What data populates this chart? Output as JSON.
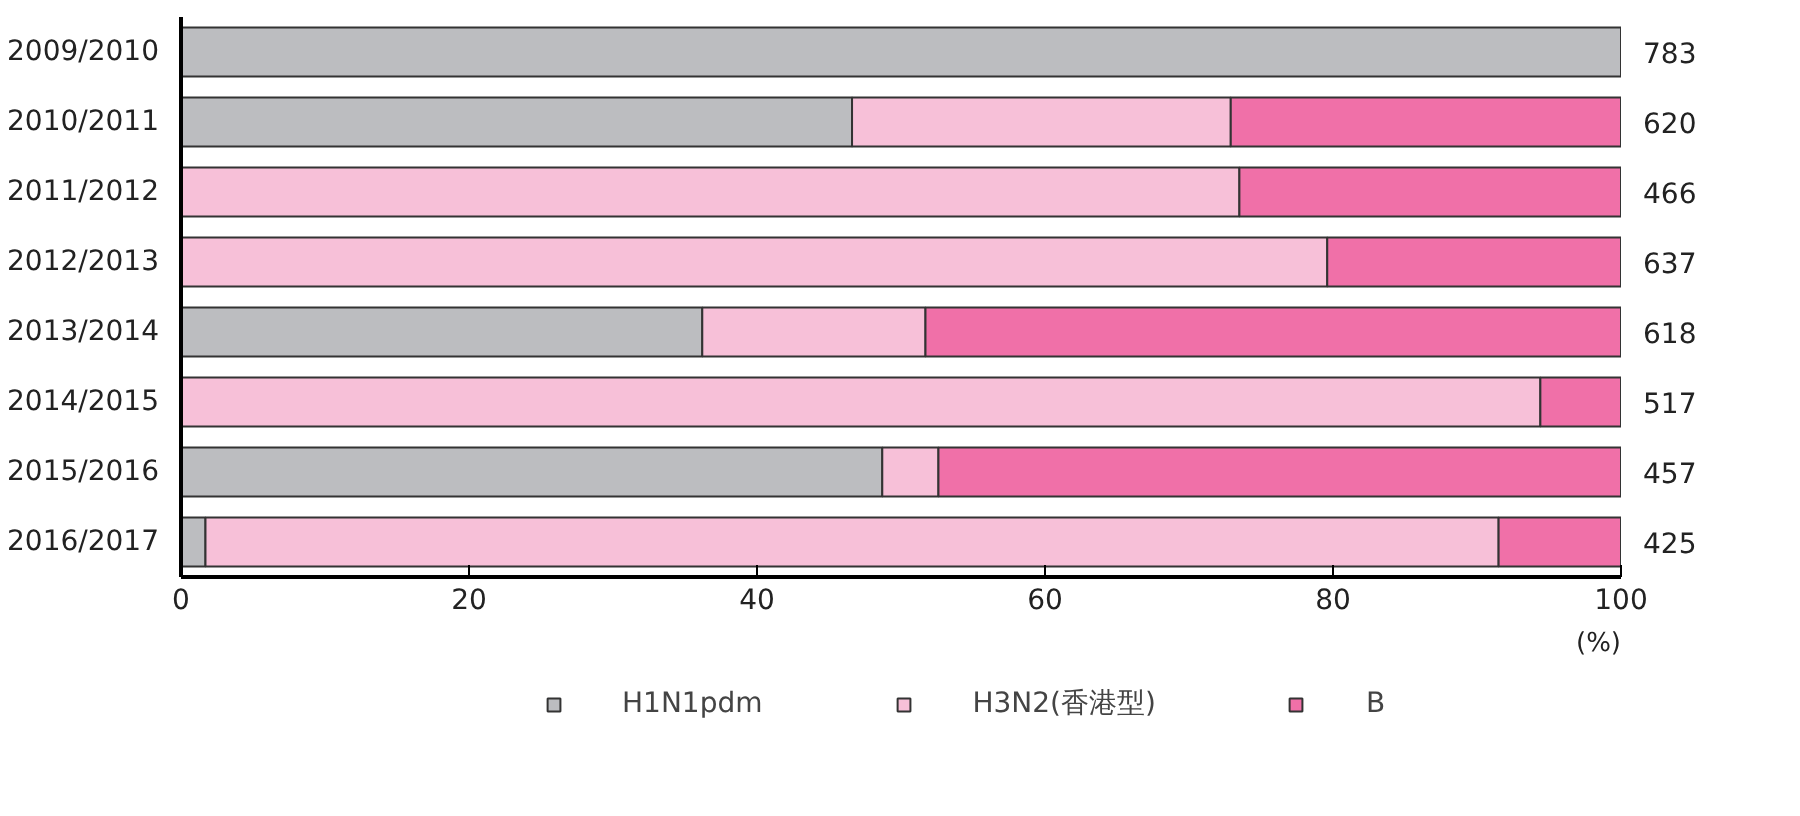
{
  "chart_data": {
    "type": "bar",
    "orientation": "horizontal",
    "stacked": true,
    "xlabel": "(%)",
    "categories": [
      "2009/2010",
      "2010/2011",
      "2011/2012",
      "2012/2013",
      "2013/2014",
      "2014/2015",
      "2015/2016",
      "2016/2017"
    ],
    "series": [
      {
        "name": "H1N1pdm",
        "color": "#bcbdc0",
        "values": [
          100,
          46.6,
          null,
          null,
          36.2,
          null,
          48.7,
          1.7
        ]
      },
      {
        "name": "H3N2(香港型)",
        "color": "#f7c0d8",
        "values": [
          null,
          26.3,
          73.5,
          79.6,
          15.5,
          94.4,
          3.9,
          89.8
        ]
      },
      {
        "name": "B",
        "color": "#f070a8",
        "values": [
          null,
          27.1,
          26.5,
          20.4,
          48.3,
          5.6,
          47.4,
          8.5
        ]
      }
    ],
    "xlim": [
      0,
      100
    ],
    "xticks": [
      0,
      20,
      40,
      60,
      80,
      100
    ],
    "annotations": [
      "783",
      "620",
      "466",
      "637",
      "618",
      "517",
      "457",
      "425"
    ],
    "legend": "bottom"
  }
}
